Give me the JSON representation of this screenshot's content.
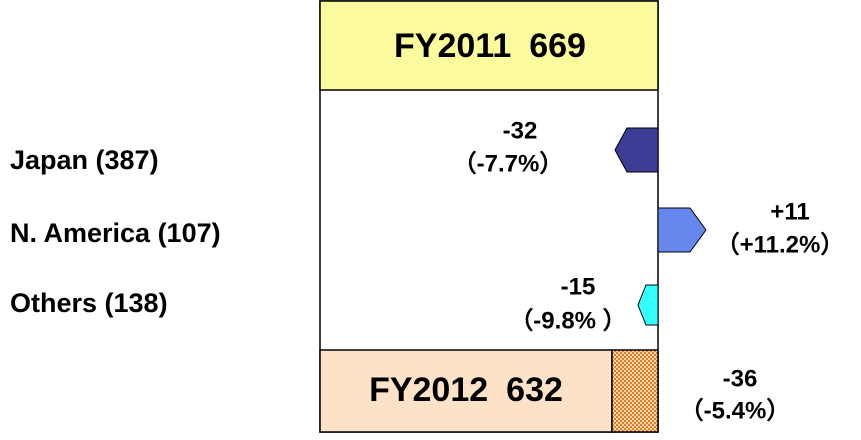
{
  "start": {
    "label": "FY2011",
    "value": "669"
  },
  "end": {
    "label": "FY2012",
    "value": "632",
    "change": "-36",
    "percent": "（-5.4%）"
  },
  "regions": [
    {
      "name": "Japan (387)",
      "change": "-32",
      "percent": "（-7.7%）"
    },
    {
      "name": "N. America (107)",
      "change": "+11",
      "percent": "（+11.2%）"
    },
    {
      "name": "Others (138)",
      "change": "-15",
      "percent": "（-9.8% ）"
    }
  ]
}
